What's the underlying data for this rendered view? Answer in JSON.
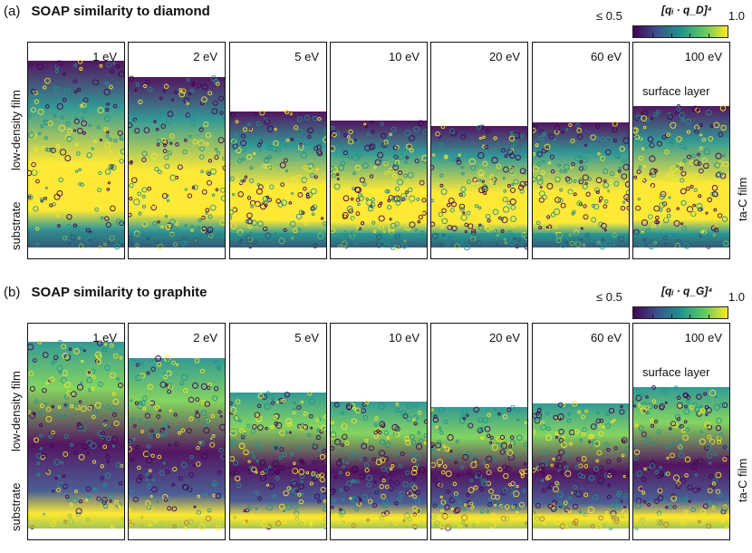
{
  "panels": [
    {
      "label": "(a)",
      "title": "SOAP similarity to diamond",
      "colorbar": {
        "min": "≤ 0.5",
        "max": "1.0",
        "title": "[qᵢ · q_D]⁴"
      },
      "energies": [
        "1 eV",
        "2 eV",
        "5 eV",
        "10 eV",
        "20 eV",
        "60 eV",
        "100 eV"
      ],
      "surface_label": "surface layer",
      "left_labels": [
        "low-density film",
        "substrate"
      ],
      "right_label": "ta-C film",
      "colors": {
        "dark": "#440154",
        "mid": "#21918c",
        "bright": "#fde725"
      }
    },
    {
      "label": "(b)",
      "title": "SOAP similarity to graphite",
      "colorbar": {
        "min": "≤ 0.5",
        "max": "1.0",
        "title": "[qᵢ · q_G]⁴"
      },
      "energies": [
        "1 eV",
        "2 eV",
        "5 eV",
        "10 eV",
        "20 eV",
        "60 eV",
        "100 eV"
      ],
      "surface_label": "surface layer",
      "left_labels": [
        "low-density film",
        "substrate"
      ],
      "right_label": "ta-C film",
      "colors": {
        "dark": "#440154",
        "mid": "#21918c",
        "bright": "#fde725"
      }
    }
  ]
}
